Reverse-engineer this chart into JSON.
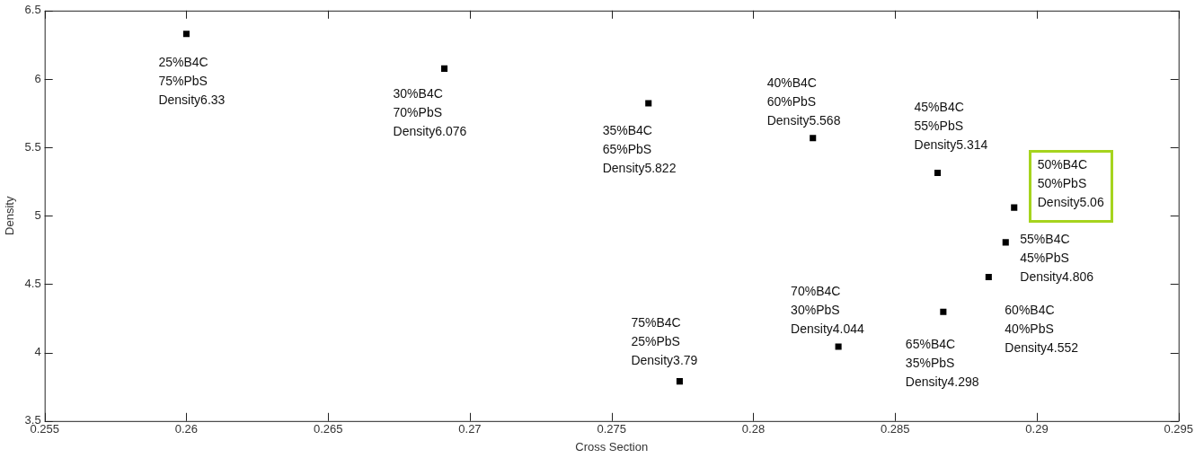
{
  "chart_data": {
    "type": "scatter",
    "xlabel": "Cross Section",
    "ylabel": "Density",
    "x": [
      0.26,
      0.2691,
      0.2763,
      0.2821,
      0.2865,
      0.2892,
      0.2889,
      0.2883,
      0.2867,
      0.283,
      0.2774
    ],
    "series": [
      {
        "color": "#000000",
        "values": [
          6.33,
          6.076,
          5.822,
          5.568,
          5.314,
          5.06,
          4.806,
          4.552,
          4.298,
          4.044,
          3.79
        ]
      }
    ],
    "xlim": [
      0.255,
      0.295
    ],
    "xticks": [
      0.255,
      0.26,
      0.265,
      0.27,
      0.275,
      0.28,
      0.285,
      0.29,
      0.295
    ],
    "ylim": [
      3.5,
      6.5
    ],
    "yticks": [
      3.5,
      4,
      4.5,
      5,
      5.5,
      6,
      6.5
    ],
    "marker": "square",
    "grid": false,
    "legend": false,
    "annotations": [
      {
        "text": "25%B4C\n75%PbS\nDensity6.33",
        "x": 0.26,
        "y": 6.33
      },
      {
        "text": "30%B4C\n70%PbS\nDensity6.076",
        "x": 0.2691,
        "y": 6.076
      },
      {
        "text": "35%B4C\n65%PbS\nDensity5.822",
        "x": 0.2763,
        "y": 5.822
      },
      {
        "text": "40%B4C\n60%PbS\nDensity5.568",
        "x": 0.2821,
        "y": 5.568
      },
      {
        "text": "45%B4C\n55%PbS\nDensity5.314",
        "x": 0.2865,
        "y": 5.314
      },
      {
        "text": "50%B4C\n50%PbS\nDensity5.06",
        "x": 0.2892,
        "y": 5.06
      },
      {
        "text": "55%B4C\n45%PbS\nDensity4.806",
        "x": 0.2889,
        "y": 4.806
      },
      {
        "text": "60%B4C\n40%PbS\nDensity4.552",
        "x": 0.2883,
        "y": 4.552
      },
      {
        "text": "65%B4C\n35%PbS\nDensity4.298",
        "x": 0.2867,
        "y": 4.298
      },
      {
        "text": "70%B4C\n30%PbS\nDensity4.044",
        "x": 0.283,
        "y": 4.044
      },
      {
        "text": "75%B4C\n25%PbS\nDensity3.79",
        "x": 0.2774,
        "y": 3.79
      }
    ]
  }
}
